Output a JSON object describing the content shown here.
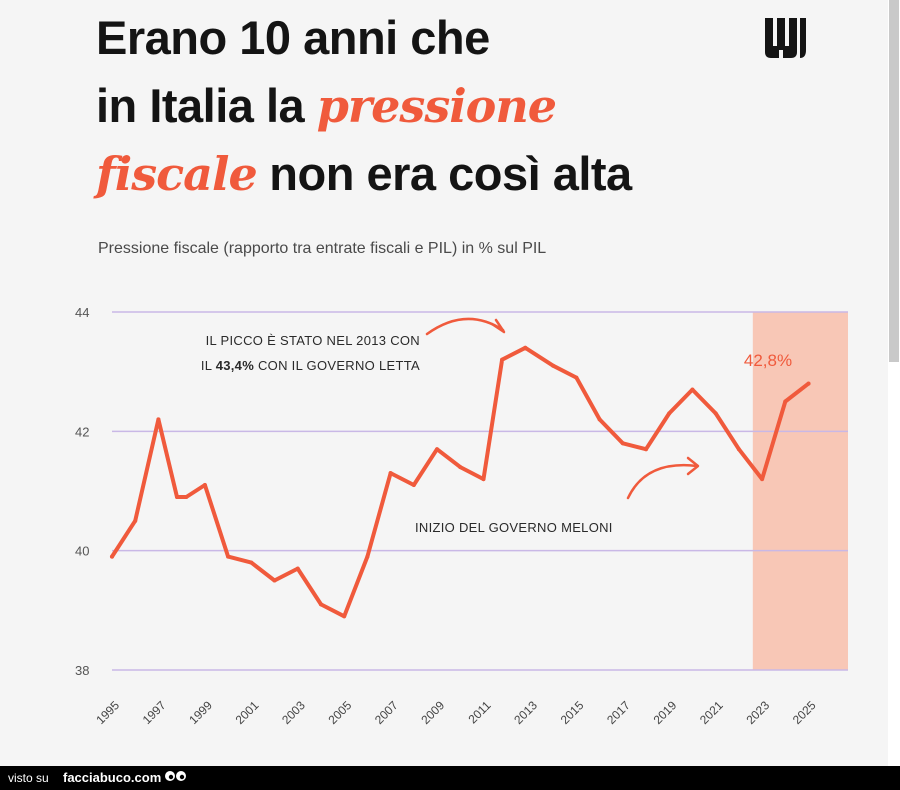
{
  "headline": {
    "line1": "Erano 10 anni che",
    "line2_before": "in Italia la ",
    "line2_accent": "pressione",
    "line3_accent": "fiscale",
    "line3_after": " non era così alta"
  },
  "subtitle": "Pressione fiscale (rapporto tra entrate fiscali e PIL) in % sul PIL",
  "colors": {
    "accent": "#f05a3c",
    "line": "#f05a3c",
    "highlight_band": "#f8c7b6",
    "grid": "#c9b8e6",
    "text": "#141414"
  },
  "chart_data": {
    "type": "line",
    "title": "",
    "xlabel": "",
    "ylabel": "",
    "x_range": [
      1995,
      2026.7
    ],
    "ylim": [
      38,
      44
    ],
    "yticks": [
      38,
      40,
      42,
      44
    ],
    "ytick_labels": [
      "38",
      "40",
      "42",
      "44"
    ],
    "xticks": [
      1995,
      1997,
      1999,
      2001,
      2003,
      2005,
      2007,
      2009,
      2011,
      2013,
      2015,
      2017,
      2019,
      2021,
      2023,
      2025
    ],
    "xtick_labels": [
      "1995",
      "1997",
      "1999",
      "2001",
      "2003",
      "2005",
      "2007",
      "2009",
      "2011",
      "2013",
      "2015",
      "2017",
      "2019",
      "2021",
      "2023",
      "2025"
    ],
    "grid": true,
    "highlight_band": [
      2022.6,
      2026.7
    ],
    "series": [
      {
        "x": [
          1995,
          1996,
          1997,
          1997.8,
          1998.2,
          1999,
          2000,
          2001,
          2002,
          2003,
          2004,
          2005,
          2006,
          2007,
          2008,
          2009,
          2010,
          2011,
          2011.8,
          2012.8,
          2014,
          2015,
          2016,
          2017,
          2018,
          2019,
          2020,
          2021,
          2022,
          2023,
          2024,
          2025
        ],
        "y": [
          39.9,
          40.5,
          42.2,
          40.9,
          40.9,
          41.1,
          39.9,
          39.8,
          39.5,
          39.7,
          39.1,
          38.9,
          39.9,
          41.3,
          41.1,
          41.7,
          41.4,
          41.2,
          43.2,
          43.4,
          43.1,
          42.9,
          42.2,
          41.8,
          41.7,
          42.3,
          42.7,
          42.3,
          41.7,
          41.2,
          42.5,
          42.8
        ]
      }
    ],
    "annotations": [
      {
        "text_line1": "IL PICCO È STATO NEL 2013 CON",
        "text_line2_pre": "IL ",
        "text_line2_bold": "43,4%",
        "text_line2_post": " CON IL GOVERNO LETTA"
      },
      {
        "text": "INIZIO DEL GOVERNO MELONI"
      },
      {
        "text": "42,8%"
      }
    ]
  },
  "footer": {
    "visto_su": "visto su",
    "site": "facciabuco.com"
  }
}
